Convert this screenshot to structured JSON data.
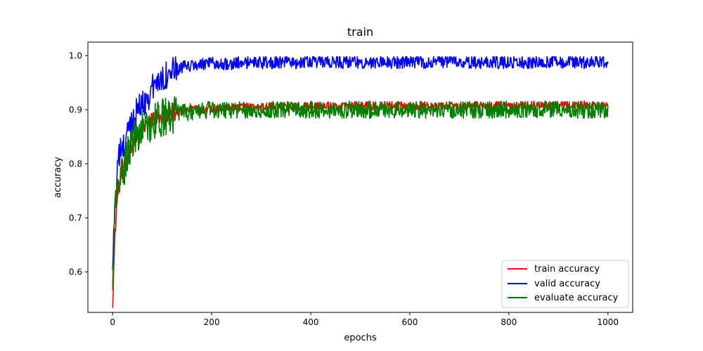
{
  "chart_data": {
    "type": "line",
    "title": "train",
    "xlabel": "epochs",
    "ylabel": "accuracy",
    "xlim": [
      -50,
      1050
    ],
    "ylim": [
      0.525,
      1.025
    ],
    "xticks": [
      "0",
      "200",
      "400",
      "600",
      "800",
      "1000"
    ],
    "yticks": [
      "0.6",
      "0.7",
      "0.8",
      "0.9",
      "1.0"
    ],
    "grid": false,
    "legend_position": "lower-right",
    "x": [
      0,
      5,
      10,
      15,
      20,
      25,
      30,
      35,
      40,
      50,
      60,
      70,
      80,
      90,
      100,
      110,
      120,
      130,
      150,
      175,
      200,
      250,
      300,
      350,
      400,
      450,
      500,
      550,
      600,
      650,
      700,
      750,
      800,
      850,
      900,
      950,
      1000
    ],
    "series": [
      {
        "name": "train accuracy",
        "color": "#ff0000",
        "values": [
          0.54,
          0.68,
          0.74,
          0.77,
          0.79,
          0.81,
          0.82,
          0.83,
          0.84,
          0.855,
          0.868,
          0.876,
          0.882,
          0.886,
          0.89,
          0.893,
          0.895,
          0.897,
          0.899,
          0.901,
          0.902,
          0.904,
          0.905,
          0.906,
          0.906,
          0.907,
          0.907,
          0.907,
          0.907,
          0.907,
          0.907,
          0.908,
          0.908,
          0.908,
          0.908,
          0.908,
          0.908
        ],
        "noise": 0.008
      },
      {
        "name": "valid accuracy",
        "color": "#0000ff",
        "values": [
          0.61,
          0.73,
          0.8,
          0.82,
          0.83,
          0.83,
          0.86,
          0.87,
          0.88,
          0.9,
          0.91,
          0.92,
          0.94,
          0.95,
          0.96,
          0.965,
          0.97,
          0.975,
          0.98,
          0.983,
          0.985,
          0.986,
          0.987,
          0.987,
          0.988,
          0.988,
          0.988,
          0.988,
          0.988,
          0.988,
          0.988,
          0.988,
          0.988,
          0.988,
          0.988,
          0.988,
          0.988
        ],
        "noise": 0.012
      },
      {
        "name": "evaluate accuracy",
        "color": "#008000",
        "values": [
          0.57,
          0.72,
          0.76,
          0.77,
          0.78,
          0.8,
          0.82,
          0.83,
          0.84,
          0.855,
          0.865,
          0.87,
          0.875,
          0.88,
          0.885,
          0.887,
          0.89,
          0.893,
          0.895,
          0.898,
          0.9,
          0.9,
          0.9,
          0.9,
          0.9,
          0.9,
          0.9,
          0.9,
          0.9,
          0.9,
          0.9,
          0.9,
          0.9,
          0.9,
          0.9,
          0.9,
          0.9
        ],
        "noise": 0.016
      }
    ]
  }
}
